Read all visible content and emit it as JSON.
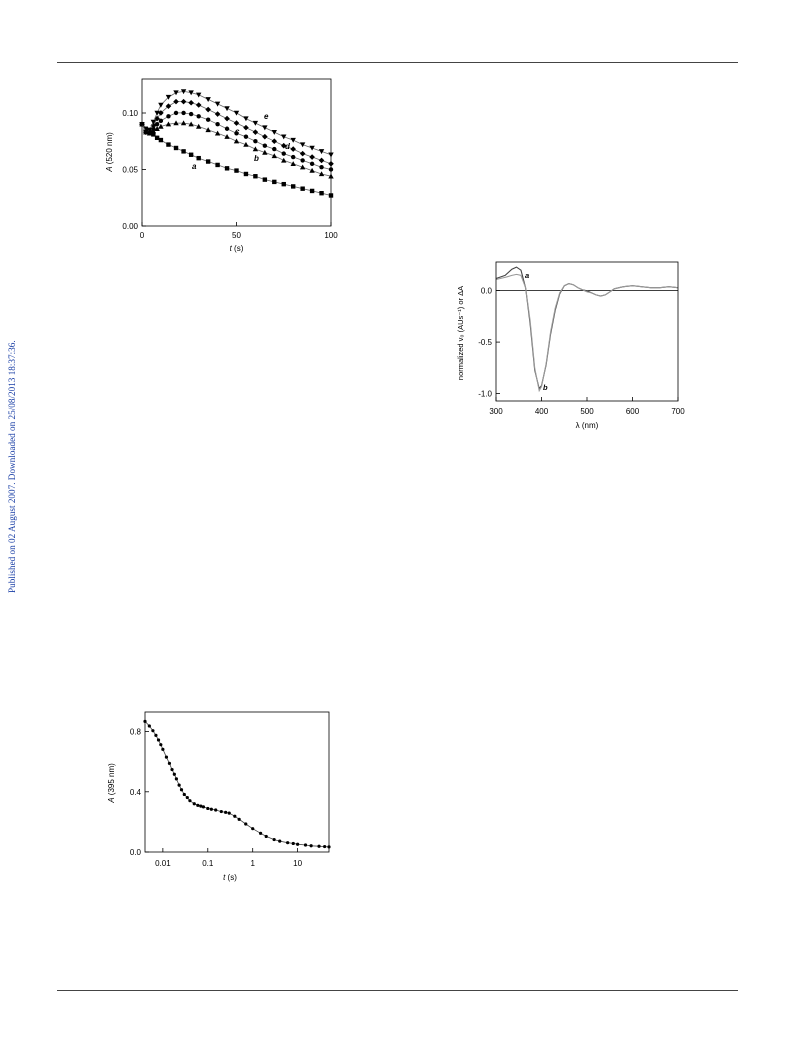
{
  "page": {
    "side_note": "Published on 02 August 2007. Downloaded on 25/08/2013 18:37:36."
  },
  "figures": [
    {
      "id": "fig1",
      "y_axis_label": {
        "prefix": "A",
        "suffix": " (520 nm)"
      },
      "x_axis_label": {
        "prefix": "t",
        "suffix": " (s)"
      },
      "x_ticks": [
        "0",
        "50",
        "100"
      ],
      "y_ticks": [
        "0.00",
        "0.05",
        "0.10"
      ],
      "curve_labels": [
        "a",
        "b",
        "c",
        "d",
        "e"
      ]
    },
    {
      "id": "fig2",
      "y_axis_label": "normalized v₀ (AUs⁻¹) or ΔA",
      "x_axis_label": "λ (nm)",
      "x_ticks": [
        "300",
        "400",
        "500",
        "600",
        "700"
      ],
      "y_ticks": [
        "0.0",
        "-0.5",
        "-1.0"
      ],
      "curve_labels": [
        "a",
        "b"
      ]
    },
    {
      "id": "fig3",
      "y_axis_label": {
        "prefix": "A",
        "suffix": " (395 nm)"
      },
      "x_axis_label": {
        "prefix": "t",
        "suffix": " (s)"
      },
      "x_ticks": [
        "0.01",
        "0.1",
        "1",
        "10"
      ],
      "y_ticks": [
        "0.0",
        "0.4",
        "0.8"
      ]
    }
  ],
  "chart_data": [
    {
      "type": "scatter",
      "xlim": [
        0,
        100
      ],
      "ylim": [
        0,
        0.13
      ],
      "series": [
        {
          "name": "a",
          "marker": "square",
          "x": [
            0,
            2,
            4,
            6,
            8,
            10,
            14,
            18,
            22,
            26,
            30,
            35,
            40,
            45,
            50,
            55,
            60,
            65,
            70,
            75,
            80,
            85,
            90,
            95,
            100
          ],
          "y": [
            0.09,
            0.086,
            0.083,
            0.081,
            0.078,
            0.076,
            0.072,
            0.069,
            0.066,
            0.063,
            0.06,
            0.057,
            0.054,
            0.051,
            0.049,
            0.046,
            0.044,
            0.041,
            0.039,
            0.037,
            0.035,
            0.033,
            0.031,
            0.029,
            0.027
          ]
        },
        {
          "name": "b",
          "marker": "triangle-up",
          "x": [
            0,
            2,
            4,
            6,
            8,
            10,
            14,
            18,
            22,
            26,
            30,
            35,
            40,
            45,
            50,
            55,
            60,
            65,
            70,
            75,
            80,
            85,
            90,
            95,
            100
          ],
          "y": [
            0.09,
            0.083,
            0.082,
            0.084,
            0.086,
            0.088,
            0.09,
            0.091,
            0.091,
            0.09,
            0.088,
            0.085,
            0.082,
            0.079,
            0.075,
            0.072,
            0.068,
            0.065,
            0.062,
            0.058,
            0.055,
            0.052,
            0.049,
            0.046,
            0.044
          ]
        },
        {
          "name": "c",
          "marker": "circle",
          "x": [
            0,
            2,
            4,
            6,
            8,
            10,
            14,
            18,
            22,
            26,
            30,
            35,
            40,
            45,
            50,
            55,
            60,
            65,
            70,
            75,
            80,
            85,
            90,
            95,
            100
          ],
          "y": [
            0.09,
            0.083,
            0.083,
            0.086,
            0.09,
            0.093,
            0.097,
            0.1,
            0.1,
            0.099,
            0.097,
            0.094,
            0.09,
            0.086,
            0.082,
            0.079,
            0.075,
            0.071,
            0.068,
            0.064,
            0.061,
            0.058,
            0.055,
            0.052,
            0.05
          ]
        },
        {
          "name": "d",
          "marker": "diamond",
          "x": [
            0,
            2,
            4,
            6,
            8,
            10,
            14,
            18,
            22,
            26,
            30,
            35,
            40,
            45,
            50,
            55,
            60,
            65,
            70,
            75,
            80,
            85,
            90,
            95,
            100
          ],
          "y": [
            0.09,
            0.083,
            0.084,
            0.089,
            0.095,
            0.1,
            0.106,
            0.11,
            0.11,
            0.109,
            0.107,
            0.103,
            0.099,
            0.095,
            0.091,
            0.087,
            0.083,
            0.079,
            0.075,
            0.071,
            0.068,
            0.064,
            0.061,
            0.058,
            0.055
          ]
        },
        {
          "name": "e",
          "marker": "triangle-down",
          "x": [
            0,
            2,
            4,
            6,
            8,
            10,
            14,
            18,
            22,
            26,
            30,
            35,
            40,
            45,
            50,
            55,
            60,
            65,
            70,
            75,
            80,
            85,
            90,
            95,
            100
          ],
          "y": [
            0.09,
            0.083,
            0.085,
            0.092,
            0.1,
            0.107,
            0.114,
            0.118,
            0.119,
            0.118,
            0.116,
            0.112,
            0.108,
            0.104,
            0.1,
            0.095,
            0.091,
            0.087,
            0.083,
            0.079,
            0.076,
            0.072,
            0.069,
            0.066,
            0.063
          ]
        }
      ]
    },
    {
      "type": "line",
      "xlim": [
        300,
        700
      ],
      "ylim": [
        -1.1,
        0.25
      ],
      "series": [
        {
          "name": "a",
          "x": [
            300,
            320,
            335,
            345,
            355,
            365,
            375,
            385,
            395,
            400,
            410,
            420,
            430,
            440,
            450,
            460,
            470,
            480,
            490,
            500,
            510,
            520,
            530,
            540,
            550,
            560,
            570,
            580,
            600,
            620,
            640,
            660,
            680,
            700
          ],
          "y": [
            0.09,
            0.12,
            0.18,
            0.2,
            0.17,
            0.0,
            -0.35,
            -0.8,
            -0.98,
            -0.95,
            -0.75,
            -0.45,
            -0.22,
            -0.06,
            0.02,
            0.04,
            0.03,
            0.0,
            -0.02,
            -0.03,
            -0.05,
            -0.07,
            -0.08,
            -0.07,
            -0.04,
            -0.01,
            0.0,
            0.01,
            0.02,
            0.01,
            0.0,
            0.0,
            0.01,
            0.0
          ]
        },
        {
          "name": "b",
          "x": [
            300,
            320,
            335,
            345,
            355,
            365,
            375,
            385,
            395,
            400,
            410,
            420,
            430,
            440,
            450,
            460,
            470,
            480,
            490,
            500,
            510,
            520,
            530,
            540,
            550,
            560,
            570,
            580,
            600,
            620,
            640,
            660,
            680,
            700
          ],
          "y": [
            0.08,
            0.1,
            0.12,
            0.13,
            0.12,
            0.0,
            -0.32,
            -0.78,
            -1.0,
            -0.96,
            -0.74,
            -0.43,
            -0.2,
            -0.05,
            0.02,
            0.04,
            0.03,
            0.0,
            -0.02,
            -0.04,
            -0.05,
            -0.07,
            -0.08,
            -0.07,
            -0.04,
            -0.01,
            0.0,
            0.01,
            0.02,
            0.01,
            0.0,
            0.0,
            0.01,
            0.0
          ]
        }
      ]
    },
    {
      "type": "scatter",
      "xscale": "log",
      "xlim": [
        0.004,
        50
      ],
      "ylim": [
        0,
        0.9
      ],
      "series": [
        {
          "name": "",
          "x": [
            0.004,
            0.005,
            0.006,
            0.007,
            0.008,
            0.009,
            0.01,
            0.012,
            0.014,
            0.016,
            0.018,
            0.02,
            0.023,
            0.026,
            0.03,
            0.035,
            0.04,
            0.05,
            0.06,
            0.07,
            0.08,
            0.1,
            0.12,
            0.15,
            0.2,
            0.25,
            0.3,
            0.4,
            0.5,
            0.7,
            1,
            1.5,
            2,
            3,
            4,
            6,
            8,
            10,
            15,
            20,
            30,
            40,
            50
          ],
          "y": [
            0.84,
            0.81,
            0.78,
            0.75,
            0.72,
            0.69,
            0.66,
            0.61,
            0.57,
            0.53,
            0.5,
            0.47,
            0.43,
            0.4,
            0.37,
            0.35,
            0.33,
            0.31,
            0.3,
            0.295,
            0.29,
            0.28,
            0.275,
            0.27,
            0.26,
            0.255,
            0.25,
            0.23,
            0.21,
            0.18,
            0.15,
            0.12,
            0.1,
            0.08,
            0.07,
            0.06,
            0.055,
            0.05,
            0.045,
            0.04,
            0.037,
            0.035,
            0.033
          ]
        }
      ]
    }
  ]
}
